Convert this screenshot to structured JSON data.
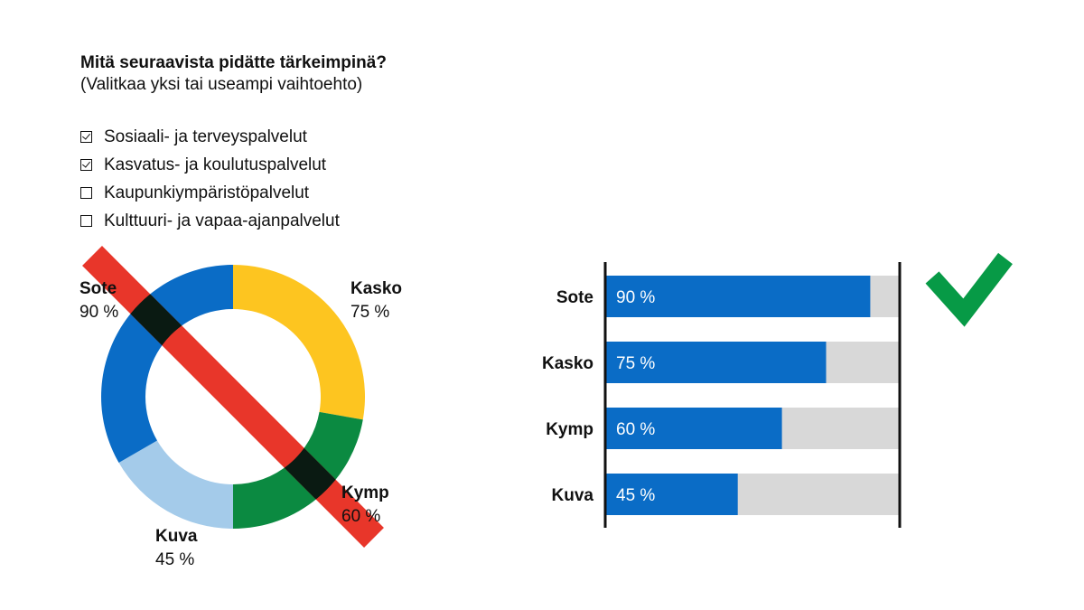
{
  "question": {
    "title": "Mitä seuraavista pidätte tärkeimpinä?",
    "subtitle": "(Valitkaa yksi tai useampi vaihtoehto)",
    "options": [
      {
        "label": "Sosiaali- ja terveyspalvelut",
        "checked": true
      },
      {
        "label": "Kasvatus- ja koulutuspalvelut",
        "checked": true
      },
      {
        "label": "Kaupunkiympäristöpalvelut",
        "checked": false
      },
      {
        "label": "Kulttuuri- ja vapaa-ajanpalvelut",
        "checked": false
      }
    ]
  },
  "colors": {
    "sote": "#0a6cc6",
    "kasko": "#fdc520",
    "kymp": "#0b8a41",
    "kuva": "#a4cbea",
    "bar": "#0a6cc6",
    "bar_track": "#d8d8d8",
    "cross": "#e8362a",
    "check": "#079a46"
  },
  "chart_data": [
    {
      "type": "pie",
      "variant": "donut",
      "crossed_out": true,
      "categories": [
        "Sote",
        "Kasko",
        "Kymp",
        "Kuva"
      ],
      "values": [
        90,
        75,
        60,
        45
      ],
      "value_labels": [
        "90 %",
        "75 %",
        "60 %",
        "45 %"
      ]
    },
    {
      "type": "bar",
      "orientation": "horizontal",
      "approved": true,
      "categories": [
        "Sote",
        "Kasko",
        "Kymp",
        "Kuva"
      ],
      "values": [
        90,
        75,
        60,
        45
      ],
      "value_labels": [
        "90 %",
        "75 %",
        "60 %",
        "45 %"
      ],
      "xlim": [
        0,
        100
      ]
    }
  ]
}
